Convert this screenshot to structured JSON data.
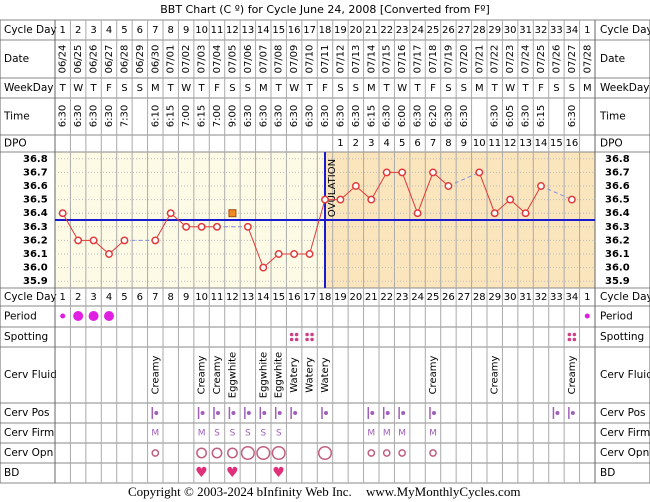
{
  "title": "BBT Chart (C º) for Cycle June 24, 2008  [Converted from Fº]",
  "row_labels": [
    "Cycle Day",
    "Date",
    "WeekDay",
    "Time",
    "DPO",
    "Cycle Day",
    "Period",
    "Spotting",
    "Cerv Fluid",
    "Cerv Pos",
    "Cerv Firm",
    "Cerv Opn",
    "BD"
  ],
  "chart_data": {
    "type": "line",
    "categories": [
      1,
      2,
      3,
      4,
      5,
      6,
      7,
      8,
      9,
      10,
      11,
      12,
      13,
      14,
      15,
      16,
      17,
      18,
      19,
      20,
      21,
      22,
      23,
      24,
      25,
      26,
      27,
      28,
      29,
      30,
      31,
      32,
      33,
      34,
      1
    ],
    "values": [
      36.4,
      36.2,
      36.2,
      36.1,
      36.2,
      null,
      36.2,
      36.4,
      36.3,
      36.3,
      36.3,
      36.4,
      36.3,
      36.0,
      36.1,
      36.1,
      36.1,
      36.5,
      36.5,
      36.6,
      36.5,
      36.7,
      36.7,
      36.4,
      36.7,
      36.6,
      null,
      36.7,
      36.4,
      36.5,
      36.4,
      36.6,
      null,
      36.5,
      null
    ],
    "excluded": [
      11
    ],
    "color": "#e03a3a",
    "excluded_color": "#f08a20",
    "ylim": [
      35.85,
      36.85
    ],
    "yticks": [
      36.8,
      36.7,
      36.6,
      36.5,
      36.4,
      36.3,
      36.2,
      36.1,
      {
        "value": 36,
        "label": "36.0"
      },
      35.9
    ],
    "coverline": 36.35,
    "coverline_color": "#1a1ad0",
    "ovulation_index": 17,
    "ovulation_label": "OVULATION"
  },
  "table": {
    "dates": [
      "06/24",
      "06/25",
      "06/26",
      "06/27",
      "06/28",
      "06/29",
      "06/30",
      "07/01",
      "07/02",
      "07/03",
      "07/04",
      "07/05",
      "07/06",
      "07/07",
      "07/08",
      "07/09",
      "07/10",
      "07/11",
      "07/12",
      "07/13",
      "07/14",
      "07/15",
      "07/16",
      "07/17",
      "07/18",
      "07/19",
      "07/20",
      "07/21",
      "07/22",
      "07/23",
      "07/24",
      "07/25",
      "07/26",
      "07/27",
      "07/28"
    ],
    "weekdays": [
      "T",
      "W",
      "T",
      "F",
      "S",
      "S",
      "M",
      "T",
      "W",
      "T",
      "F",
      "S",
      "S",
      "M",
      "T",
      "W",
      "T",
      "F",
      "S",
      "S",
      "M",
      "T",
      "W",
      "T",
      "F",
      "S",
      "S",
      "M",
      "T",
      "W",
      "T",
      "F",
      "S",
      "S",
      "M"
    ],
    "times": [
      "6:30",
      "6:30",
      "6:30",
      "6:30",
      "7:30",
      null,
      "6:10",
      "6:15",
      "7:00",
      "6:15",
      "7:00",
      "9:00",
      "6:30",
      "6:30",
      "6:30",
      "6:30",
      "6:30",
      "6:30",
      "6:30",
      "6:30",
      "6:15",
      "6:30",
      "6:00",
      "6:30",
      "6:20",
      "6:30",
      "6:30",
      null,
      "6:30",
      "6:05",
      "6:30",
      "6:15",
      null,
      "6:30",
      null
    ],
    "dpo": [
      null,
      null,
      null,
      null,
      null,
      null,
      null,
      null,
      null,
      null,
      null,
      null,
      null,
      null,
      null,
      null,
      null,
      null,
      1,
      2,
      3,
      4,
      5,
      6,
      7,
      8,
      9,
      10,
      11,
      12,
      13,
      14,
      15,
      16,
      null
    ],
    "period": [
      1,
      2,
      2,
      2,
      null,
      null,
      null,
      null,
      null,
      null,
      null,
      null,
      null,
      null,
      null,
      null,
      null,
      null,
      null,
      null,
      null,
      null,
      null,
      null,
      null,
      null,
      null,
      null,
      null,
      null,
      null,
      null,
      null,
      null,
      1
    ],
    "spotting": [
      false,
      false,
      false,
      false,
      false,
      false,
      false,
      false,
      false,
      false,
      false,
      false,
      false,
      false,
      false,
      true,
      true,
      false,
      false,
      false,
      false,
      false,
      false,
      false,
      false,
      false,
      false,
      false,
      false,
      false,
      false,
      false,
      false,
      true,
      false
    ],
    "cerv_fluid": [
      null,
      null,
      null,
      null,
      null,
      null,
      "Creamy",
      null,
      null,
      "Creamy",
      "Creamy",
      "Eggwhite",
      null,
      "Eggwhite",
      "Eggwhite",
      "Watery",
      "Watery",
      "Watery",
      null,
      null,
      null,
      null,
      null,
      null,
      "Creamy",
      null,
      null,
      null,
      "Creamy",
      null,
      null,
      null,
      null,
      "Creamy",
      null
    ],
    "cerv_pos": [
      false,
      false,
      false,
      false,
      false,
      false,
      true,
      false,
      false,
      true,
      true,
      true,
      true,
      true,
      true,
      true,
      false,
      true,
      false,
      false,
      true,
      true,
      true,
      false,
      true,
      false,
      false,
      false,
      false,
      false,
      false,
      false,
      true,
      true,
      false
    ],
    "cerv_firm": [
      null,
      null,
      null,
      null,
      null,
      null,
      "M",
      null,
      null,
      "M",
      "S",
      "S",
      "S",
      "S",
      "S",
      null,
      null,
      null,
      null,
      null,
      "M",
      "M",
      "M",
      null,
      "M",
      null,
      null,
      null,
      null,
      null,
      null,
      null,
      null,
      null,
      null
    ],
    "cerv_opn": [
      null,
      null,
      null,
      null,
      null,
      null,
      1,
      null,
      null,
      2,
      2,
      2,
      3,
      3,
      3,
      null,
      null,
      3,
      null,
      null,
      1,
      1,
      1,
      null,
      1,
      null,
      null,
      null,
      null,
      null,
      null,
      null,
      null,
      null,
      null
    ],
    "bd": [
      false,
      false,
      false,
      false,
      false,
      false,
      false,
      false,
      false,
      true,
      false,
      true,
      false,
      false,
      true,
      false,
      false,
      false,
      false,
      false,
      false,
      false,
      false,
      false,
      false,
      false,
      false,
      false,
      false,
      false,
      false,
      false,
      false,
      false,
      false
    ]
  },
  "footer": {
    "copyright": "Copyright © 2003-2024 bInfinity Web Inc.",
    "site": "www.MyMonthlyCycles.com"
  }
}
